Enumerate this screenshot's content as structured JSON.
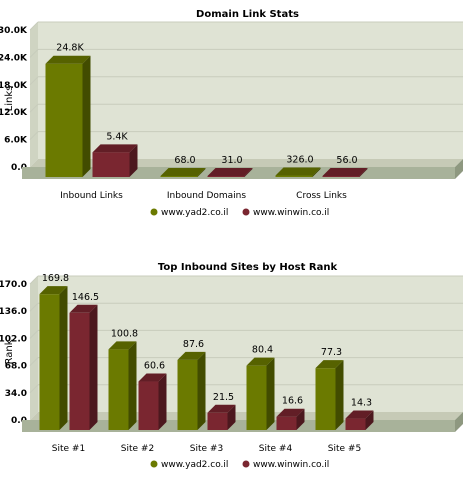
{
  "chart_data": [
    {
      "type": "bar",
      "title": "Domain Link Stats",
      "xlabel": "",
      "ylabel": "Links",
      "ylim": [
        0,
        30000
      ],
      "yticks": [
        "0.0",
        "6.0K",
        "12.0K",
        "18.0K",
        "24.0K",
        "30.0K"
      ],
      "categories": [
        "Inbound Links",
        "Inbound Domains",
        "Cross Links"
      ],
      "series": [
        {
          "name": "www.yad2.co.il",
          "values": [
            24800,
            68,
            326
          ],
          "labels": [
            "24.8K",
            "68.0",
            "326.0"
          ],
          "color": "#6b7a00"
        },
        {
          "name": "www.winwin.co.il",
          "values": [
            5400,
            31,
            56
          ],
          "labels": [
            "5.4K",
            "31.0",
            "56.0"
          ],
          "color": "#7a2630"
        }
      ],
      "grid": true,
      "legend": "bottom"
    },
    {
      "type": "bar",
      "title": "Top Inbound Sites by Host Rank",
      "xlabel": "",
      "ylabel": "Rank",
      "ylim": [
        0,
        170
      ],
      "yticks": [
        "0.0",
        "34.0",
        "68.0",
        "102.0",
        "136.0",
        "170.0"
      ],
      "categories": [
        "Site #1",
        "Site #2",
        "Site #3",
        "Site #4",
        "Site #5"
      ],
      "series": [
        {
          "name": "www.yad2.co.il",
          "values": [
            169.8,
            100.8,
            87.6,
            80.4,
            77.3
          ],
          "labels": [
            "169.8",
            "100.8",
            "87.6",
            "80.4",
            "77.3"
          ],
          "color": "#6b7a00"
        },
        {
          "name": "www.winwin.co.il",
          "values": [
            146.5,
            60.6,
            21.5,
            16.6,
            14.3
          ],
          "labels": [
            "146.5",
            "60.6",
            "21.5",
            "16.6",
            "14.3"
          ],
          "color": "#7a2630"
        }
      ],
      "grid": true,
      "legend": "bottom"
    }
  ]
}
